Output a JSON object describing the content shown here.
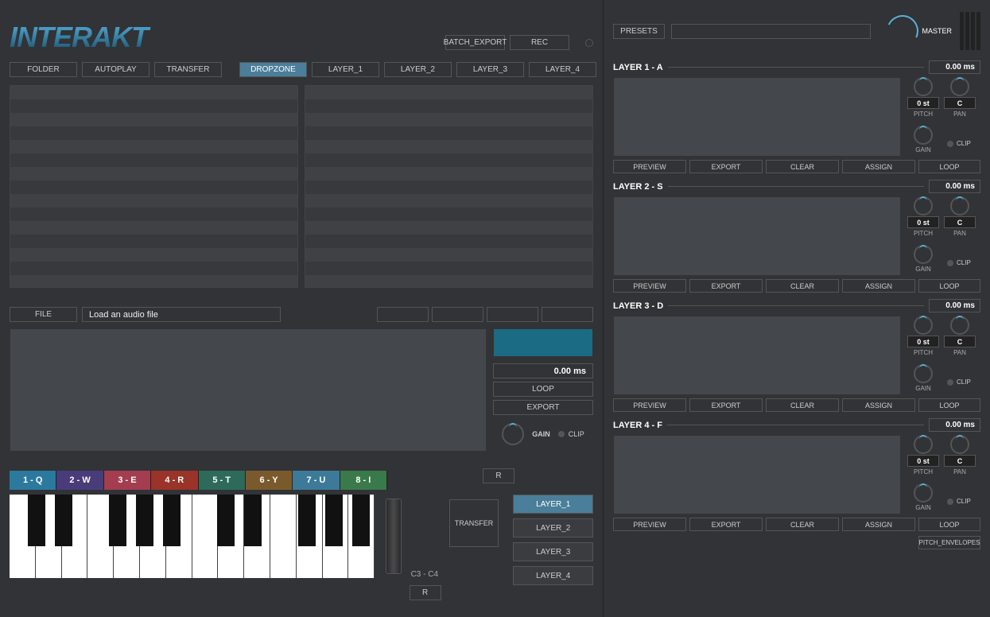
{
  "logo": "INTERAKT",
  "top": {
    "batch_export": "BATCH_EXPORT",
    "rec": "REC"
  },
  "presets_label": "PRESETS",
  "master_label": "MASTER",
  "left_tabs": {
    "folder": "FOLDER",
    "autoplay": "AUTOPLAY",
    "transfer": "TRANSFER",
    "dropzone": "DROPZONE",
    "layer1": "LAYER_1",
    "layer2": "LAYER_2",
    "layer3": "LAYER_3",
    "layer4": "LAYER_4"
  },
  "file": {
    "label": "FILE",
    "path": "Load an audio file"
  },
  "wave": {
    "ms": "0.00 ms",
    "loop": "LOOP",
    "export": "EXPORT",
    "gain": "GAIN",
    "clip": "CLIP"
  },
  "pads": [
    {
      "label": "1 - Q",
      "color": "#2b7a9e"
    },
    {
      "label": "2 - W",
      "color": "#4a3c7a"
    },
    {
      "label": "3 - E",
      "color": "#a33d4f"
    },
    {
      "label": "4 - R",
      "color": "#9a3328"
    },
    {
      "label": "5 - T",
      "color": "#2d6a5a"
    },
    {
      "label": "6 - Y",
      "color": "#7a5a2d"
    },
    {
      "label": "7 - U",
      "color": "#3d7a9a"
    },
    {
      "label": "8 - I",
      "color": "#3a7a4a"
    }
  ],
  "r_btn": "R",
  "key_range": "C3 - C4",
  "transfer_label": "TRANSFER",
  "layer_select": [
    "LAYER_1",
    "LAYER_2",
    "LAYER_3",
    "LAYER_4"
  ],
  "layers": [
    {
      "title": "LAYER 1 - A",
      "ms": "0.00 ms",
      "pitch": "0 st",
      "pan": "C"
    },
    {
      "title": "LAYER 2 - S",
      "ms": "0.00 ms",
      "pitch": "0 st",
      "pan": "C"
    },
    {
      "title": "LAYER 3 - D",
      "ms": "0.00 ms",
      "pitch": "0 st",
      "pan": "C"
    },
    {
      "title": "LAYER 4 - F",
      "ms": "0.00 ms",
      "pitch": "0 st",
      "pan": "C"
    }
  ],
  "layer_labels": {
    "pitch": "PITCH",
    "pan": "PAN",
    "gain": "GAIN",
    "clip": "CLIP",
    "preview": "PREVIEW",
    "export": "EXPORT",
    "clear": "CLEAR",
    "assign": "ASSIGN",
    "loop": "LOOP"
  },
  "pitch_env": "PITCH_ENVELOPES"
}
